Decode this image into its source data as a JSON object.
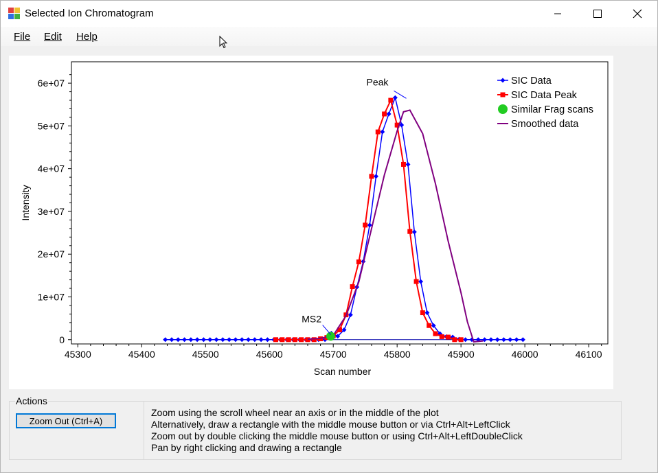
{
  "window": {
    "title": "Selected Ion Chromatogram",
    "icon": "chromatogram-app-icon"
  },
  "menu": {
    "file": "File",
    "edit": "Edit",
    "help": "Help"
  },
  "actions": {
    "title": "Actions",
    "zoom_out_label": "Zoom Out (Ctrl+A)",
    "help_lines": [
      "Zoom using the scroll wheel near an axis or in the middle of the plot",
      "Alternatively, draw a rectangle with the middle mouse button or via Ctrl+Alt+LeftClick",
      "Zoom out by double clicking the middle mouse button or using Ctrl+Alt+LeftDoubleClick",
      "Pan by right clicking and drawing a rectangle"
    ]
  },
  "colors": {
    "sic_data": "#0000ff",
    "sic_peak": "#ff0000",
    "similar_frag": "#22cc22",
    "smoothed": "#800080",
    "baseline": "#0000aa"
  },
  "chart_data": {
    "type": "line",
    "xlabel": "Scan number",
    "ylabel": "Intensity",
    "xlim": [
      45290,
      46130
    ],
    "ylim": [
      -1000000,
      65000000
    ],
    "x_ticks": [
      45300,
      45400,
      45500,
      45600,
      45700,
      45800,
      45900,
      46000,
      46100
    ],
    "y_ticks": [
      0,
      10000000,
      20000000,
      30000000,
      40000000,
      50000000,
      60000000
    ],
    "y_tick_labels": [
      "0",
      "1e+07",
      "2e+07",
      "3e+07",
      "4e+07",
      "5e+07",
      "6e+07"
    ],
    "legend_position": "top-right",
    "legend": [
      "SIC Data",
      "SIC Data Peak",
      "Similar Frag scans",
      "Smoothed data"
    ],
    "series": [
      {
        "name": "SIC Data",
        "x": [
          45437,
          45447,
          45457,
          45467,
          45477,
          45487,
          45497,
          45507,
          45517,
          45527,
          45537,
          45547,
          45557,
          45567,
          45577,
          45587,
          45597,
          45607,
          45617,
          45627,
          45637,
          45647,
          45657,
          45667,
          45677,
          45687,
          45697,
          45707,
          45717,
          45727,
          45737,
          45747,
          45757,
          45767,
          45777,
          45787,
          45797,
          45807,
          45817,
          45827,
          45837,
          45847,
          45857,
          45867,
          45877,
          45887,
          45897,
          45907,
          45917,
          45927,
          45937,
          45947,
          45957,
          45967,
          45977,
          45987,
          45997
        ],
        "values": [
          0,
          0,
          0,
          0,
          0,
          0,
          0,
          0,
          0,
          0,
          0,
          0,
          0,
          0,
          0,
          0,
          0,
          0,
          0,
          0,
          0,
          0,
          0,
          0,
          0,
          0,
          1500000,
          800000,
          2300000,
          5800000,
          12300000,
          18300000,
          26800000,
          38200000,
          48600000,
          52800000,
          56600000,
          50200000,
          41000000,
          25200000,
          13600000,
          6300000,
          3300000,
          1400000,
          700000,
          600000,
          100000,
          0,
          0,
          0,
          0,
          0,
          0,
          0,
          0,
          0,
          0
        ]
      },
      {
        "name": "SIC Data Peak",
        "x": [
          45610,
          45620,
          45630,
          45640,
          45650,
          45660,
          45670,
          45680,
          45690,
          45700,
          45710,
          45720,
          45730,
          45740,
          45750,
          45760,
          45770,
          45780,
          45790,
          45800,
          45810,
          45820,
          45830,
          45840,
          45850,
          45860,
          45870,
          45880,
          45890,
          45900
        ],
        "values": [
          0,
          0,
          0,
          0,
          0,
          0,
          0,
          200000,
          500000,
          900000,
          2300000,
          5800000,
          12400000,
          18200000,
          26800000,
          38200000,
          48600000,
          52800000,
          56000000,
          50200000,
          41000000,
          25300000,
          13600000,
          6300000,
          3300000,
          1400000,
          700000,
          600000,
          0,
          0
        ]
      },
      {
        "name": "Similar Frag scans",
        "x": [
          45696
        ],
        "values": [
          800000
        ]
      },
      {
        "name": "Smoothed data",
        "x": [
          45660,
          45680,
          45700,
          45720,
          45740,
          45760,
          45780,
          45800,
          45810,
          45820,
          45840,
          45860,
          45880,
          45900,
          45910,
          45920,
          45935
        ],
        "values": [
          100000,
          300000,
          1000000,
          5600000,
          13500000,
          26000000,
          38500000,
          48800000,
          53300000,
          53700000,
          48200000,
          36500000,
          23000000,
          11000000,
          4200000,
          -500000,
          -300000
        ]
      }
    ],
    "annotations": [
      {
        "text": "Peak",
        "x": 45810,
        "y": 56600000
      },
      {
        "text": "MS2",
        "x": 45694,
        "y": 1500000
      }
    ]
  }
}
